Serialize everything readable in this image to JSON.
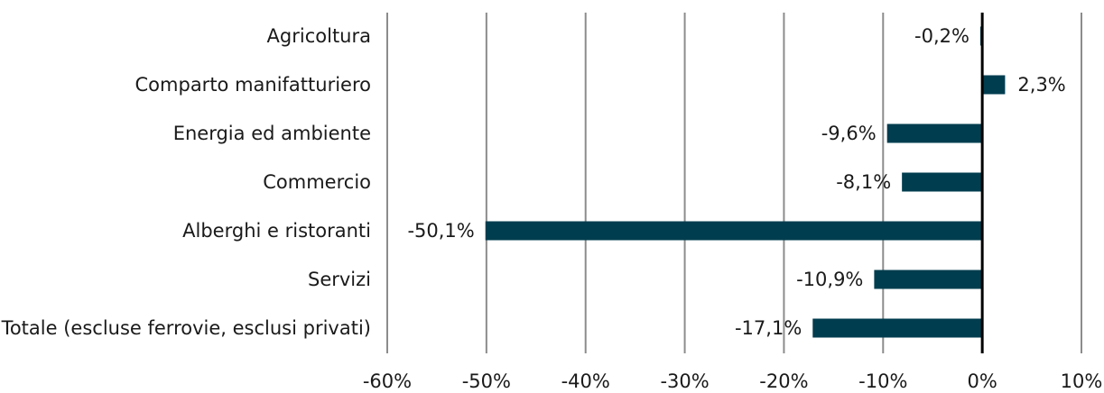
{
  "chart_data": {
    "type": "bar",
    "orientation": "horizontal",
    "categories": [
      "Agricoltura",
      "Comparto manifatturiero",
      "Energia ed ambiente",
      "Commercio",
      "Alberghi e ristoranti",
      "Servizi",
      "Totale (escluse ferrovie, esclusi privati)"
    ],
    "values": [
      -0.2,
      2.3,
      -9.6,
      -8.1,
      -50.1,
      -10.9,
      -17.1
    ],
    "value_labels": [
      "-0,2%",
      "2,3%",
      "-9,6%",
      "-8,1%",
      "-50,1%",
      "-10,9%",
      "-17,1%"
    ],
    "xlim": [
      -60,
      10
    ],
    "x_ticks": [
      -60,
      -50,
      -40,
      -30,
      -20,
      -10,
      0,
      10
    ],
    "x_tick_labels": [
      "-60%",
      "-50%",
      "-40%",
      "-30%",
      "-20%",
      "-10%",
      "0%",
      "10%"
    ],
    "grid": true,
    "title": "",
    "xlabel": "",
    "ylabel": "",
    "colors": {
      "bar": "#003d4f",
      "grid": "#8c8c8c",
      "zero_line": "#000000",
      "text": "#1a1a1a"
    }
  }
}
